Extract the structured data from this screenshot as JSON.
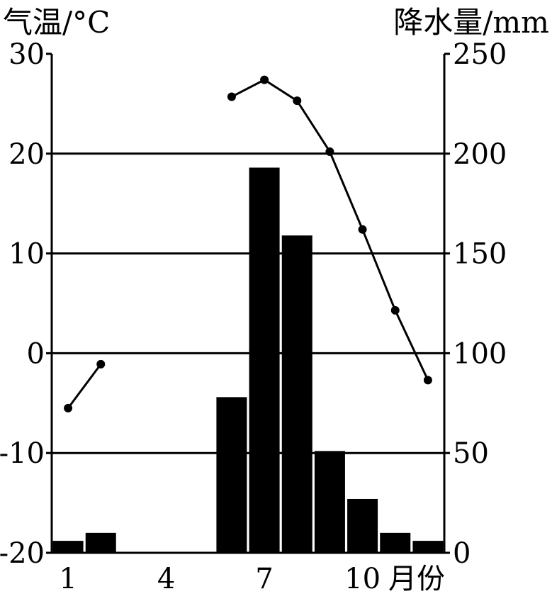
{
  "chart_data": {
    "type": "bar+line",
    "left_axis_label": "气温/°C",
    "right_axis_label": "降水量/mm",
    "x_suffix": "月份",
    "left_ticks": [
      "30",
      "20",
      "10",
      "0",
      "-10",
      "-20"
    ],
    "right_ticks": [
      "250",
      "200",
      "150",
      "100",
      "50",
      "0"
    ],
    "x_tick_labels": [
      {
        "month": 1,
        "label": "1"
      },
      {
        "month": 4,
        "label": "4"
      },
      {
        "month": 7,
        "label": "7"
      },
      {
        "month": 10,
        "label": "10"
      }
    ],
    "temperature_ylim": [
      -20,
      30
    ],
    "precip_ylim": [
      0,
      250
    ],
    "grid": "horizontal at 0, 50, 150, 200 mm",
    "months": [
      1,
      2,
      3,
      4,
      5,
      6,
      7,
      8,
      9,
      10,
      11,
      12
    ],
    "precipitation_mm": [
      6,
      10,
      0,
      0,
      0,
      78,
      193,
      159,
      51,
      27,
      10,
      6
    ],
    "temperature_segments": [
      [
        {
          "month": 1,
          "value": -5.5
        },
        {
          "month": 2,
          "value": -1.1
        }
      ],
      [
        {
          "month": 6,
          "value": 25.7
        },
        {
          "month": 7,
          "value": 27.4
        },
        {
          "month": 8,
          "value": 25.3
        },
        {
          "month": 9,
          "value": 20.2
        },
        {
          "month": 10,
          "value": 12.4
        },
        {
          "month": 11,
          "value": 4.3
        },
        {
          "month": 12,
          "value": -2.7
        }
      ]
    ]
  }
}
